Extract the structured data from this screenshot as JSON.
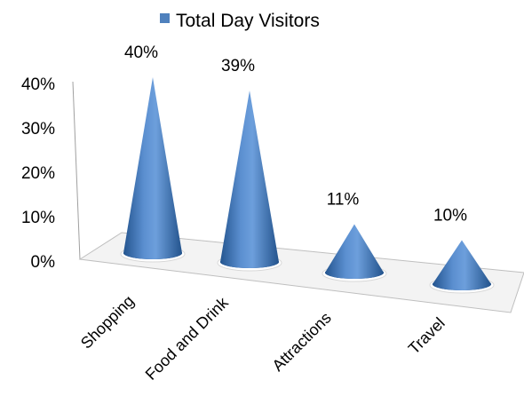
{
  "chart_data": {
    "type": "bar",
    "style": "3d-cone",
    "categories": [
      "Shopping",
      "Food and Drink",
      "Attractions",
      "Travel"
    ],
    "series": [
      {
        "name": "Total Day Visitors",
        "values": [
          40,
          39,
          11,
          10
        ]
      }
    ],
    "data_labels": [
      "40%",
      "39%",
      "11%",
      "10%"
    ],
    "y_ticks": [
      "0%",
      "10%",
      "20%",
      "30%",
      "40%"
    ],
    "ylim": [
      0,
      40
    ],
    "legend_position": "top",
    "grid": false,
    "colors": {
      "cone": "#4f81bd",
      "cone_dark": "#1f4e8c",
      "floor": "#f2f2f2",
      "axis": "#9a9a9a"
    }
  }
}
